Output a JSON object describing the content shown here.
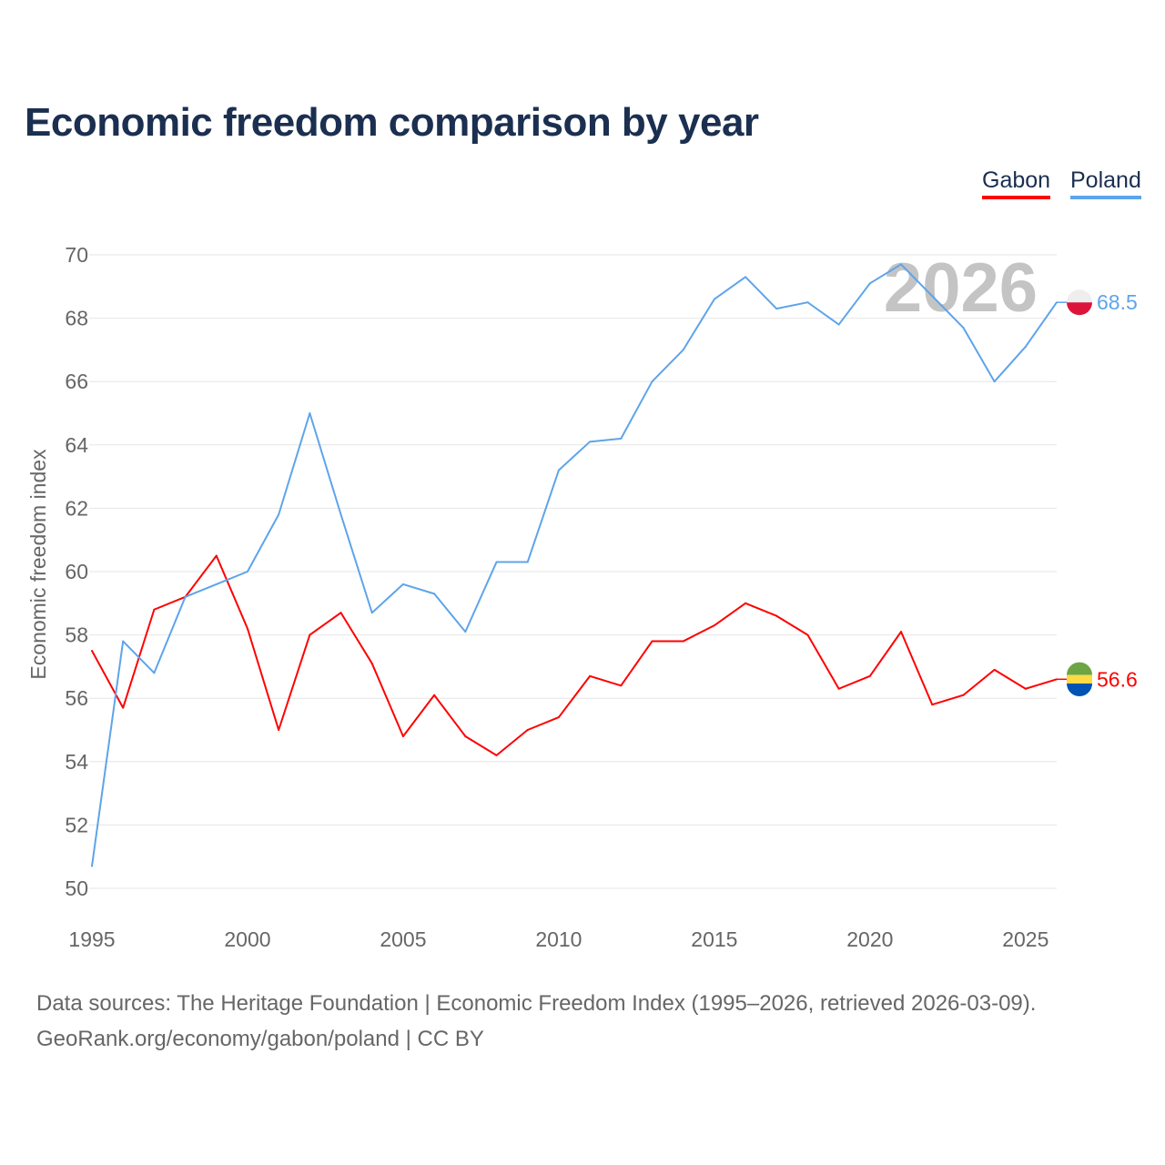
{
  "chart_data": {
    "type": "line",
    "title": "Economic freedom comparison by year",
    "xlabel": "",
    "ylabel": "Economic freedom index",
    "xlim": [
      1995,
      2026
    ],
    "ylim": [
      50,
      70
    ],
    "x_ticks": [
      1995,
      2000,
      2005,
      2010,
      2015,
      2020,
      2025
    ],
    "y_ticks": [
      50,
      52,
      54,
      56,
      58,
      60,
      62,
      64,
      66,
      68,
      70
    ],
    "grid": true,
    "legend_placement": "top-right",
    "watermark_year": "2026",
    "x": [
      1995,
      1996,
      1997,
      1998,
      1999,
      2000,
      2001,
      2002,
      2003,
      2004,
      2005,
      2006,
      2007,
      2008,
      2009,
      2010,
      2011,
      2012,
      2013,
      2014,
      2015,
      2016,
      2017,
      2018,
      2019,
      2020,
      2021,
      2022,
      2023,
      2024,
      2025,
      2026
    ],
    "series": [
      {
        "name": "Gabon",
        "color": "#ff0000",
        "end_label": "56.6",
        "values": [
          57.5,
          55.7,
          58.8,
          59.2,
          60.5,
          58.2,
          55.0,
          58.0,
          58.7,
          57.1,
          54.8,
          56.1,
          54.8,
          54.2,
          55.0,
          55.4,
          56.7,
          56.4,
          57.8,
          57.8,
          58.3,
          59.0,
          58.6,
          58.0,
          56.3,
          56.7,
          58.1,
          55.8,
          56.1,
          56.9,
          56.3,
          56.6
        ]
      },
      {
        "name": "Poland",
        "color": "#5ea4ea",
        "end_label": "68.5",
        "values": [
          50.7,
          57.8,
          56.8,
          59.2,
          59.6,
          60.0,
          61.8,
          65.0,
          61.8,
          58.7,
          59.6,
          59.3,
          58.1,
          60.3,
          60.3,
          63.2,
          64.1,
          64.2,
          66.0,
          67.0,
          68.6,
          69.3,
          68.3,
          68.5,
          67.8,
          69.1,
          69.7,
          68.7,
          67.7,
          66.0,
          67.1,
          68.5
        ]
      }
    ]
  },
  "footer": {
    "line1": "Data sources: The Heritage Foundation | Economic Freedom Index (1995–2026, retrieved 2026-03-09).",
    "line2": "GeoRank.org/economy/gabon/poland | CC BY"
  }
}
